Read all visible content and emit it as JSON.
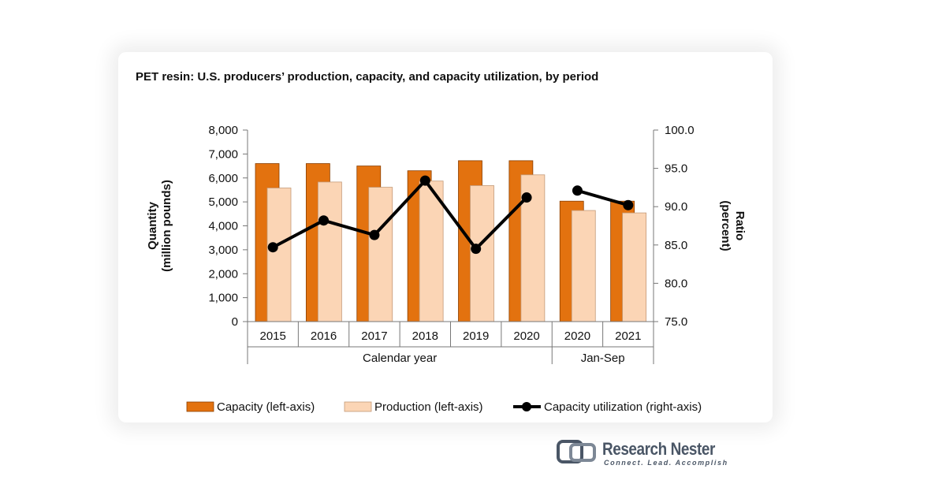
{
  "chart_data": {
    "type": "bar",
    "title": "PET resin: U.S. producers’ production, capacity, and capacity utilization, by period",
    "categories": [
      "2015",
      "2016",
      "2017",
      "2018",
      "2019",
      "2020",
      "2020",
      "2021"
    ],
    "groups": [
      {
        "label": "Calendar year",
        "categories": [
          "2015",
          "2016",
          "2017",
          "2018",
          "2019",
          "2020"
        ]
      },
      {
        "label": "Jan-Sep",
        "categories": [
          "2020",
          "2021"
        ]
      }
    ],
    "series": [
      {
        "name": "Capacity (left-axis)",
        "type": "bar",
        "axis": "left",
        "color": "#e3720f",
        "values": [
          6600,
          6600,
          6500,
          6300,
          6720,
          6720,
          5030,
          5030
        ]
      },
      {
        "name": "Production (left-axis)",
        "type": "bar",
        "axis": "left",
        "color": "#fbd5b5",
        "values": [
          5580,
          5830,
          5610,
          5870,
          5680,
          6130,
          4640,
          4540
        ]
      },
      {
        "name": "Capacity utilization (right-axis)",
        "type": "line",
        "axis": "right",
        "color": "#000000",
        "values": [
          84.7,
          88.2,
          86.3,
          93.4,
          84.5,
          91.2,
          92.1,
          90.2
        ]
      }
    ],
    "y_left": {
      "label_line1": "Quantity",
      "label_line2": "(million pounds)",
      "ylim": [
        0,
        8000
      ],
      "ticks": [
        "0",
        "1,000",
        "2,000",
        "3,000",
        "4,000",
        "5,000",
        "6,000",
        "7,000",
        "8,000"
      ]
    },
    "y_right": {
      "label_line1": "Ratio",
      "label_line2": "(percent)",
      "ylim": [
        75,
        100
      ],
      "ticks": [
        "75.0",
        "80.0",
        "85.0",
        "90.0",
        "95.0",
        "100.0"
      ]
    },
    "grid": false,
    "legend_position": "bottom"
  },
  "logo": {
    "name": "Research Nester",
    "tagline": "Connect. Lead. Accomplish",
    "color": "#4a5666"
  }
}
